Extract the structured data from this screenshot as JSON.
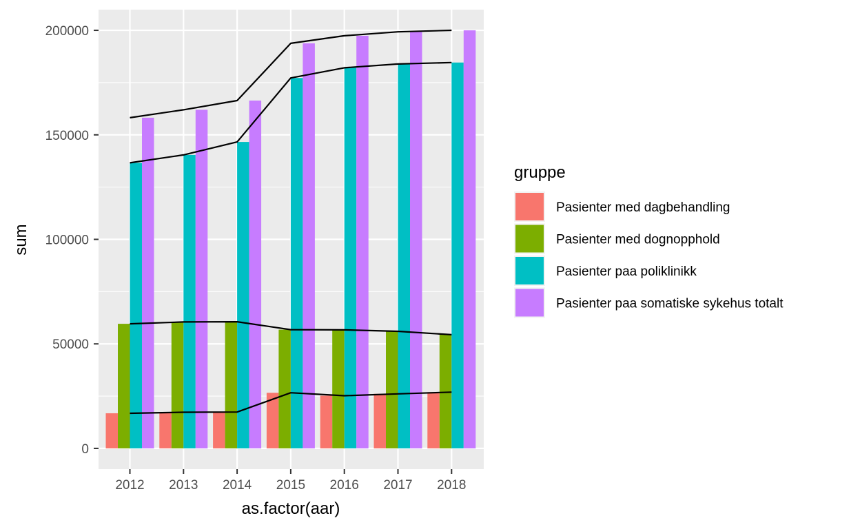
{
  "chart_data": {
    "type": "bar",
    "xlabel": "as.factor(aar)",
    "ylabel": "sum",
    "categories": [
      "2012",
      "2013",
      "2014",
      "2015",
      "2016",
      "2017",
      "2018"
    ],
    "ylim": [
      -9900,
      209900
    ],
    "yticks": [
      0,
      50000,
      100000,
      150000,
      200000
    ],
    "ytick_labels": [
      "0",
      "50000",
      "100000",
      "150000",
      "200000"
    ],
    "grid": true,
    "legend": {
      "title": "gruppe",
      "placement": "right"
    },
    "series": [
      {
        "name": "Pasienter med dagbehandling",
        "color": "#F8766D",
        "values": [
          16800,
          17300,
          17400,
          26600,
          25200,
          26100,
          26900
        ]
      },
      {
        "name": "Pasienter med dognopphold",
        "color": "#7CAE00",
        "values": [
          59600,
          60500,
          60600,
          56800,
          56700,
          56000,
          54400
        ]
      },
      {
        "name": "Pasienter paa poliklinikk",
        "color": "#00BFC4",
        "values": [
          136600,
          140400,
          146600,
          177200,
          182100,
          183900,
          184600
        ]
      },
      {
        "name": "Pasienter paa somatiske sykehus totalt",
        "color": "#C77CFF",
        "values": [
          158200,
          162000,
          166400,
          193800,
          197400,
          199300,
          200000
        ]
      }
    ],
    "lines": [
      {
        "values": [
          16800,
          17300,
          17400,
          26600,
          25200,
          26100,
          26900
        ],
        "color": "#000000"
      },
      {
        "values": [
          59600,
          60500,
          60600,
          56800,
          56700,
          56000,
          54400
        ],
        "color": "#000000"
      },
      {
        "values": [
          136600,
          140400,
          146600,
          177200,
          182100,
          183900,
          184600
        ],
        "color": "#000000"
      },
      {
        "values": [
          158200,
          162000,
          166400,
          193800,
          197400,
          199300,
          200000
        ],
        "color": "#000000"
      }
    ]
  }
}
